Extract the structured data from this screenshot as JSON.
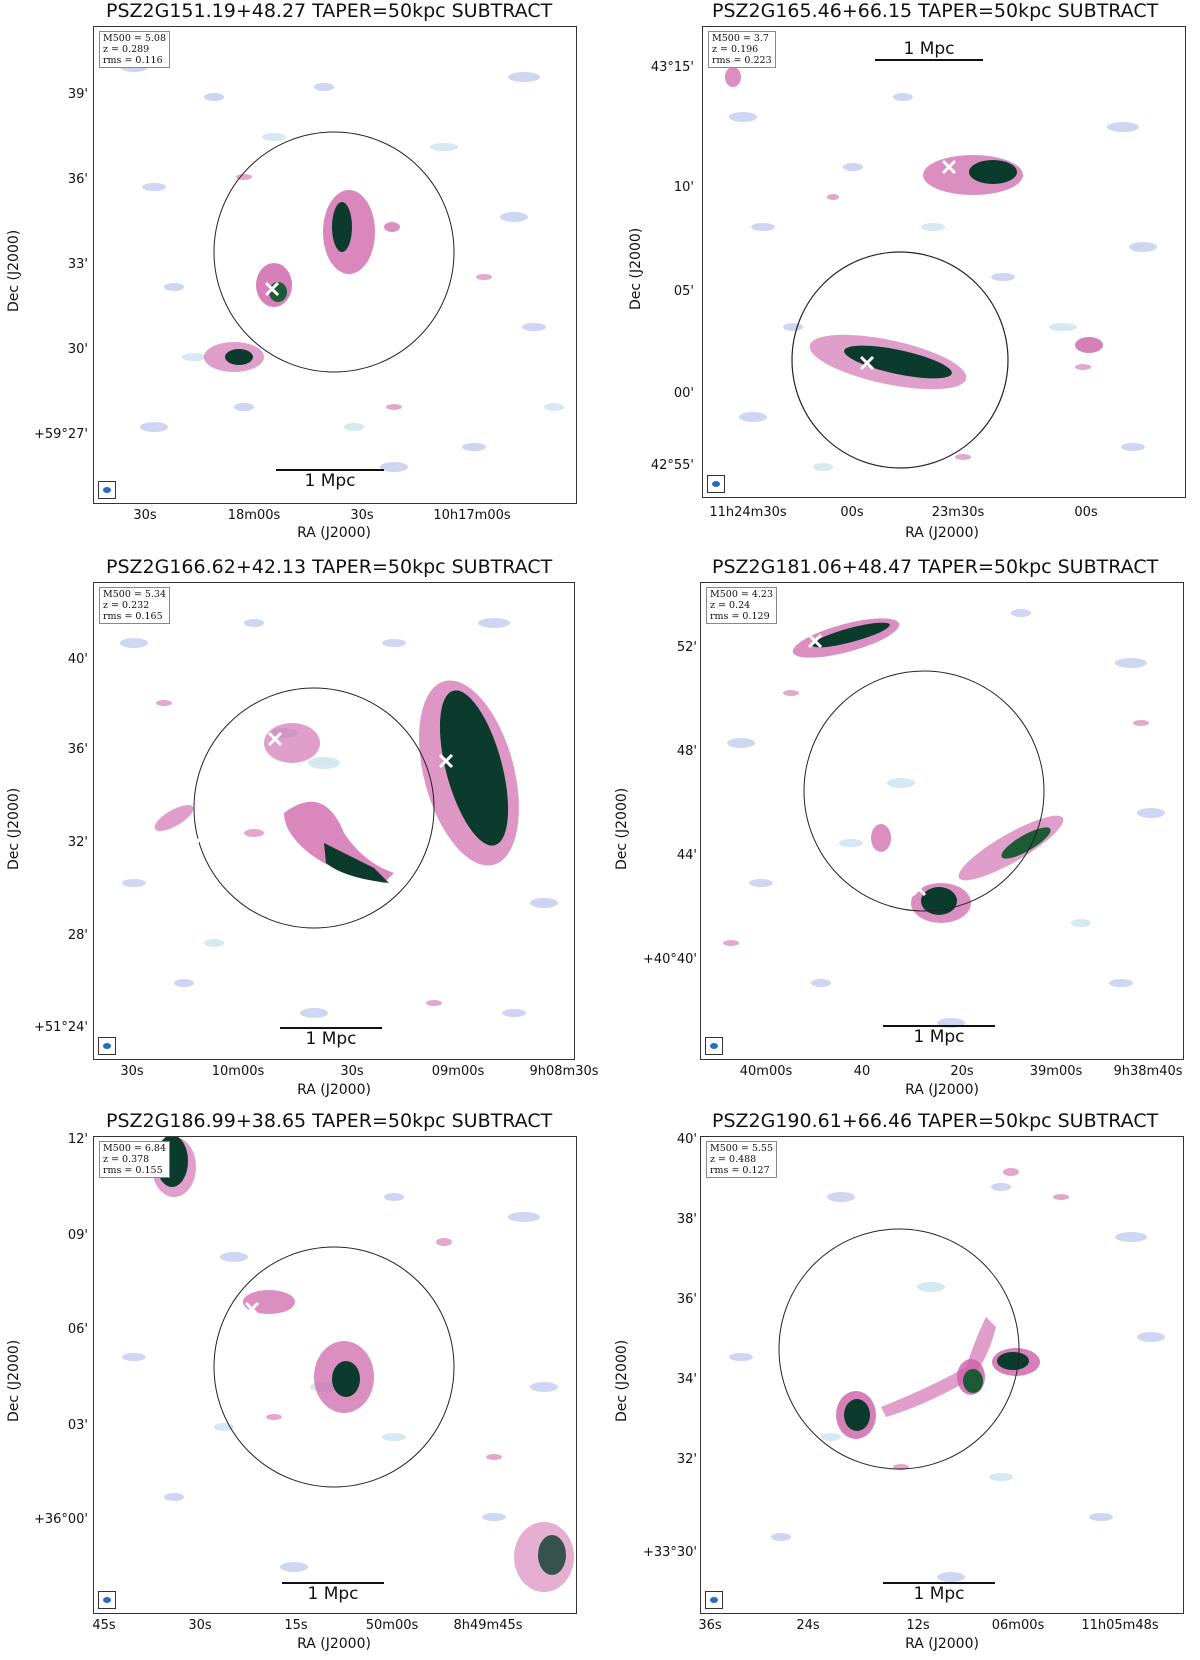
{
  "panels": [
    {
      "title": "PSZ2G151.19+48.27 TAPER=50kpc SUBTRACT",
      "info": [
        "M500 = 5.08",
        "z = 0.289",
        "rms = 0.116"
      ],
      "scale_label": "1 Mpc",
      "xlabel": "RA (J2000)",
      "ylabel": "Dec (J2000)",
      "yticks": [
        "39'",
        "36'",
        "33'",
        "30'",
        "+59°27'"
      ],
      "xticks": [
        "30s",
        "18m00s",
        "30s",
        "10h17m00s"
      ]
    },
    {
      "title": "PSZ2G165.46+66.15 TAPER=50kpc SUBTRACT",
      "info": [
        "M500 = 3.7",
        "z = 0.196",
        "rms = 0.223"
      ],
      "scale_label": "1 Mpc",
      "xlabel": "RA (J2000)",
      "ylabel": "Dec (J2000)",
      "yticks": [
        "43°15'",
        "10'",
        "05'",
        "00'",
        "42°55'"
      ],
      "xticks": [
        "11h24m30s",
        "00s",
        "23m30s",
        "00s"
      ]
    },
    {
      "title": "PSZ2G166.62+42.13 TAPER=50kpc SUBTRACT",
      "info": [
        "M500 = 5.34",
        "z = 0.232",
        "rms = 0.165"
      ],
      "scale_label": "1 Mpc",
      "xlabel": "RA (J2000)",
      "ylabel": "Dec (J2000)",
      "yticks": [
        "40'",
        "36'",
        "32'",
        "28'",
        "+51°24'"
      ],
      "xticks": [
        "30s",
        "10m00s",
        "30s",
        "09m00s",
        "9h08m30s"
      ]
    },
    {
      "title": "PSZ2G181.06+48.47 TAPER=50kpc SUBTRACT",
      "info": [
        "M500 = 4.23",
        "z = 0.24",
        "rms = 0.129"
      ],
      "scale_label": "1 Mpc",
      "xlabel": "RA (J2000)",
      "ylabel": "Dec (J2000)",
      "yticks": [
        "52'",
        "48'",
        "44'",
        "+40°40'"
      ],
      "xticks": [
        "40m00s",
        "40",
        "20s",
        "39m00s",
        "9h38m40s"
      ]
    },
    {
      "title": "PSZ2G186.99+38.65 TAPER=50kpc SUBTRACT",
      "info": [
        "M500 = 6.84",
        "z = 0.378",
        "rms = 0.155"
      ],
      "scale_label": "1 Mpc",
      "xlabel": "RA (J2000)",
      "ylabel": "Dec (J2000)",
      "yticks": [
        "12'",
        "09'",
        "06'",
        "03'",
        "+36°00'"
      ],
      "xticks": [
        "45s",
        "30s",
        "15s",
        "50m00s",
        "8h49m45s"
      ]
    },
    {
      "title": "PSZ2G190.61+66.46 TAPER=50kpc SUBTRACT",
      "info": [
        "M500 = 5.55",
        "z = 0.488",
        "rms = 0.127"
      ],
      "scale_label": "1 Mpc",
      "xlabel": "RA (J2000)",
      "ylabel": "Dec (J2000)",
      "yticks": [
        "40'",
        "38'",
        "36'",
        "34'",
        "32'",
        "+33°30'"
      ],
      "xticks": [
        "36s",
        "24s",
        "12s",
        "06m00s",
        "11h05m48s"
      ]
    }
  ],
  "colors": {
    "noise": "#b9c4ee",
    "faint": "#c9e3ee",
    "mid": "#cc5fa6",
    "strong": "#0b3b2c",
    "marker": "#ffffff"
  }
}
